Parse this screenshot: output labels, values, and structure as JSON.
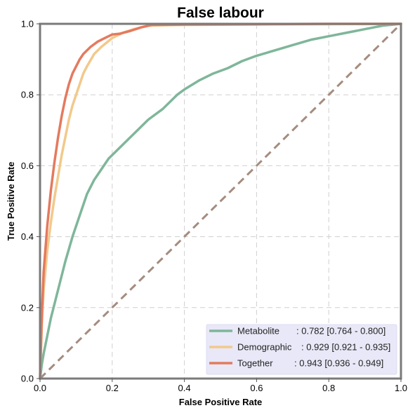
{
  "chart_data": {
    "type": "line",
    "title": "False labour",
    "xlabel": "False Positive Rate",
    "ylabel": "True Positive Rate",
    "xlim": [
      0,
      1
    ],
    "ylim": [
      0,
      1
    ],
    "xticks": [
      "0.0",
      "0.2",
      "0.4",
      "0.6",
      "0.8",
      "1.0"
    ],
    "yticks": [
      "0.0",
      "0.2",
      "0.4",
      "0.6",
      "0.8",
      "1.0"
    ],
    "grid": true,
    "legend_position": "bottom-right",
    "colors": {
      "metabolite": "#7fb69a",
      "demographic": "#f2c98b",
      "together": "#e47a5e",
      "diagonal": "#a58c7e",
      "legend_bg": "#e8e8f8"
    },
    "series": [
      {
        "name": "Metabolite",
        "legend_label": ": 0.782 [0.764 - 0.800]",
        "x": [
          0,
          0.005,
          0.01,
          0.02,
          0.03,
          0.05,
          0.07,
          0.09,
          0.11,
          0.13,
          0.15,
          0.17,
          0.19,
          0.21,
          0.23,
          0.26,
          0.3,
          0.34,
          0.38,
          0.4,
          0.44,
          0.48,
          0.52,
          0.56,
          0.6,
          0.65,
          0.7,
          0.75,
          0.8,
          0.85,
          0.9,
          0.95,
          1.0
        ],
        "y": [
          0,
          0.04,
          0.07,
          0.12,
          0.17,
          0.25,
          0.33,
          0.4,
          0.46,
          0.52,
          0.56,
          0.59,
          0.62,
          0.64,
          0.66,
          0.69,
          0.73,
          0.76,
          0.8,
          0.815,
          0.84,
          0.86,
          0.875,
          0.895,
          0.91,
          0.925,
          0.94,
          0.955,
          0.965,
          0.975,
          0.985,
          0.995,
          1.0
        ]
      },
      {
        "name": "Demographic",
        "legend_label": ": 0.929 [0.921 - 0.935]",
        "x": [
          0,
          0.005,
          0.01,
          0.02,
          0.03,
          0.04,
          0.05,
          0.06,
          0.07,
          0.08,
          0.09,
          0.1,
          0.11,
          0.12,
          0.13,
          0.15,
          0.17,
          0.2,
          0.23,
          0.26,
          0.3,
          0.4,
          0.6,
          0.8,
          1.0
        ],
        "y": [
          0,
          0.15,
          0.25,
          0.36,
          0.44,
          0.51,
          0.57,
          0.63,
          0.68,
          0.73,
          0.77,
          0.8,
          0.83,
          0.86,
          0.88,
          0.915,
          0.935,
          0.96,
          0.975,
          0.985,
          0.995,
          0.997,
          0.998,
          0.999,
          1.0
        ]
      },
      {
        "name": "Together",
        "legend_label": ": 0.943 [0.936 - 0.949]",
        "x": [
          0,
          0.005,
          0.01,
          0.02,
          0.03,
          0.04,
          0.05,
          0.06,
          0.07,
          0.08,
          0.09,
          0.1,
          0.11,
          0.12,
          0.14,
          0.16,
          0.18,
          0.2,
          0.22,
          0.25,
          0.28,
          0.31,
          0.4,
          0.6,
          0.8,
          1.0
        ],
        "y": [
          0,
          0.18,
          0.3,
          0.43,
          0.53,
          0.61,
          0.68,
          0.74,
          0.79,
          0.83,
          0.86,
          0.88,
          0.9,
          0.915,
          0.935,
          0.95,
          0.96,
          0.97,
          0.972,
          0.98,
          0.99,
          0.997,
          0.998,
          0.999,
          1.0,
          1.0
        ]
      }
    ],
    "legend": [
      {
        "key": "metabolite",
        "label": "Metabolite",
        "value": ": 0.782 [0.764 - 0.800]"
      },
      {
        "key": "demographic",
        "label": "Demographic",
        "value": ": 0.929 [0.921 - 0.935]"
      },
      {
        "key": "together",
        "label": "Together",
        "value": ": 0.943 [0.936 - 0.949]"
      }
    ]
  }
}
